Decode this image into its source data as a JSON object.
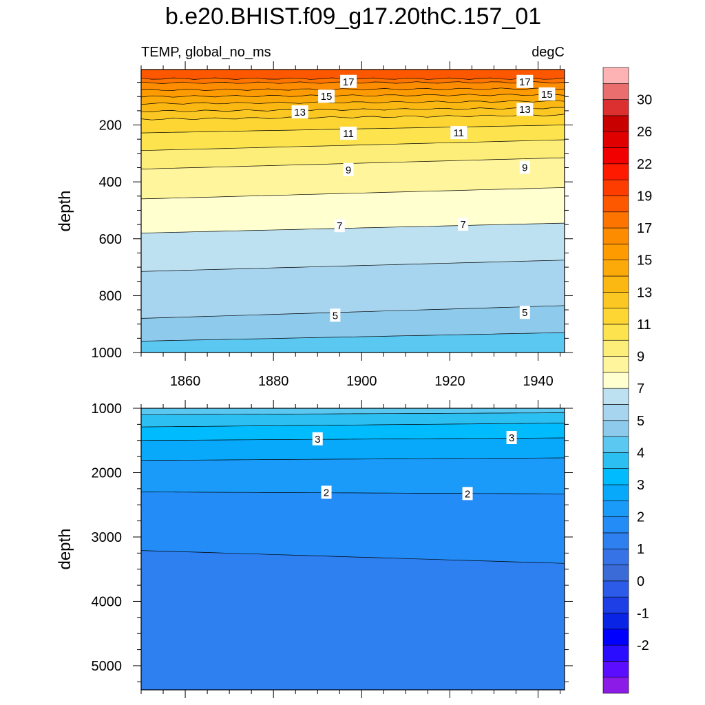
{
  "title": "b.e20.BHIST.f09_g17.20thC.157_01",
  "left_subtitle": "TEMP, global_no_ms",
  "right_subtitle": "degC",
  "chart_data": {
    "type": "contour",
    "variable": "TEMP",
    "region": "global_no_ms",
    "units": "degC",
    "x_ticks": [
      1860,
      1880,
      1900,
      1920,
      1940
    ],
    "x_range": [
      1850,
      1946
    ],
    "colorbar": {
      "levels": [
        -3,
        -2.5,
        -2,
        -1.5,
        -1,
        -0.5,
        0,
        0.5,
        1,
        1.5,
        2,
        2.5,
        3,
        3.5,
        4,
        4.5,
        5,
        6,
        7,
        8,
        9,
        10,
        11,
        12,
        13,
        14,
        15,
        16,
        17,
        18,
        19,
        20,
        22,
        24,
        26,
        28,
        30,
        32
      ],
      "tick_labels": [
        "-2",
        "-1",
        "0",
        "1",
        "2",
        "3",
        "4",
        "5",
        "7",
        "9",
        "11",
        "13",
        "15",
        "17",
        "19",
        "22",
        "26",
        "30"
      ],
      "tick_values": [
        -2,
        -1,
        0,
        1,
        2,
        3,
        4,
        5,
        7,
        9,
        11,
        13,
        15,
        17,
        19,
        22,
        26,
        30
      ],
      "colors": [
        "#8c1be8",
        "#5a0dff",
        "#2a0dff",
        "#0000ff",
        "#0a24e6",
        "#1f3fe6",
        "#2b5be8",
        "#3a6bd6",
        "#3573e6",
        "#2e7ff0",
        "#238cf6",
        "#1a9bfa",
        "#08a8fa",
        "#00bcff",
        "#2cc0f2",
        "#5bc8f2",
        "#8dcaeb",
        "#a7d5f0",
        "#bde1f0",
        "#ffffd0",
        "#fff59c",
        "#fdee7a",
        "#fde44f",
        "#fdd633",
        "#fbc722",
        "#fbb812",
        "#fca90a",
        "#fd9b00",
        "#fd8c00",
        "#fd7400",
        "#fd5800",
        "#fd3c00",
        "#ff1a00",
        "#f20000",
        "#e00000",
        "#c80000",
        "#dc3030",
        "#ea6e6e",
        "#fdb3b3"
      ]
    },
    "panels": [
      {
        "name": "upper",
        "ylabel": "depth",
        "y_range": [
          5,
          1000
        ],
        "y_ticks": [
          200,
          400,
          600,
          800,
          1000
        ],
        "contours": [
          {
            "level": 18,
            "depth": [
              37,
              37
            ]
          },
          {
            "level": 17,
            "depth": [
              52,
              50
            ]
          },
          {
            "level": 16,
            "depth": [
              77,
              72
            ]
          },
          {
            "level": 15,
            "depth": [
              100,
              93
            ]
          },
          {
            "level": 14,
            "depth": [
              125,
              116
            ]
          },
          {
            "level": 13,
            "depth": [
              152,
              140
            ]
          },
          {
            "level": 12,
            "depth": [
              180,
              165
            ]
          },
          {
            "level": 11,
            "depth": [
              228,
              200
            ]
          },
          {
            "level": 10,
            "depth": [
              290,
              252
            ]
          },
          {
            "level": 9,
            "depth": [
              355,
              315
            ]
          },
          {
            "level": 8,
            "depth": [
              460,
              420
            ]
          },
          {
            "level": 7,
            "depth": [
              580,
              545
            ]
          },
          {
            "level": 6,
            "depth": [
              715,
              675
            ]
          },
          {
            "level": 5,
            "depth": [
              880,
              835
            ]
          },
          {
            "level": 4.5,
            "depth": [
              960,
              930
            ]
          }
        ],
        "labels": [
          {
            "text": "17",
            "year": 1897,
            "depth": 48
          },
          {
            "text": "17",
            "year": 1937,
            "depth": 48
          },
          {
            "text": "15",
            "year": 1892,
            "depth": 100
          },
          {
            "text": "15",
            "year": 1942,
            "depth": 92
          },
          {
            "text": "13",
            "year": 1886,
            "depth": 155
          },
          {
            "text": "13",
            "year": 1937,
            "depth": 146
          },
          {
            "text": "11",
            "year": 1897,
            "depth": 230
          },
          {
            "text": "11",
            "year": 1922,
            "depth": 228
          },
          {
            "text": "9",
            "year": 1897,
            "depth": 358
          },
          {
            "text": "9",
            "year": 1937,
            "depth": 350
          },
          {
            "text": "7",
            "year": 1895,
            "depth": 555
          },
          {
            "text": "7",
            "year": 1923,
            "depth": 550
          },
          {
            "text": "5",
            "year": 1894,
            "depth": 870
          },
          {
            "text": "5",
            "year": 1937,
            "depth": 860
          }
        ]
      },
      {
        "name": "lower",
        "ylabel": "depth",
        "y_range": [
          1000,
          5375
        ],
        "y_ticks": [
          1000,
          2000,
          3000,
          4000,
          5000
        ],
        "contours": [
          {
            "level": 4,
            "depth": [
              1100,
              1070
            ]
          },
          {
            "level": 3.5,
            "depth": [
              1290,
              1230
            ]
          },
          {
            "level": 3,
            "depth": [
              1500,
              1460
            ]
          },
          {
            "level": 2.5,
            "depth": [
              1810,
              1770
            ]
          },
          {
            "level": 2,
            "depth": [
              2300,
              2330
            ]
          },
          {
            "level": 1.5,
            "depth": [
              3210,
              3410
            ]
          }
        ],
        "labels": [
          {
            "text": "3",
            "year": 1890,
            "depth": 1480
          },
          {
            "text": "3",
            "year": 1934,
            "depth": 1460
          },
          {
            "text": "2",
            "year": 1892,
            "depth": 2310
          },
          {
            "text": "2",
            "year": 1924,
            "depth": 2330
          }
        ]
      }
    ]
  }
}
